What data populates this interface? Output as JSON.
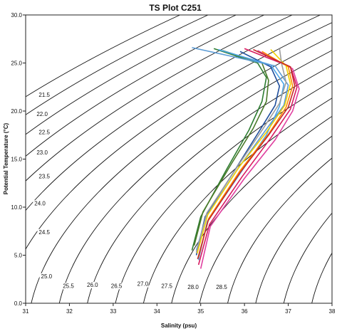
{
  "chart_data": {
    "type": "line",
    "title": "TS Plot C251",
    "xlabel": "Salinity (psu)",
    "ylabel": "Potential Temperature (°C)",
    "xlim": [
      31,
      38
    ],
    "ylim": [
      0,
      30
    ],
    "x_ticks": [
      "31",
      "32",
      "33",
      "34",
      "35",
      "36",
      "37",
      "38"
    ],
    "y_ticks": [
      "0.0",
      "5.0",
      "10.0",
      "15.0",
      "20.0",
      "25.0",
      "30.0"
    ],
    "grid": false,
    "legend": "none",
    "isopycnals": {
      "labels": [
        "21.5",
        "22.0",
        "22.5",
        "23.0",
        "23.5",
        "24.0",
        "24.5",
        "25.0",
        "25.5",
        "26.0",
        "26.5",
        "27.0",
        "27.5",
        "28.0",
        "28.5"
      ],
      "label_points": [
        {
          "label": "21.5",
          "x": 31.3,
          "y": 21.5
        },
        {
          "label": "22.0",
          "x": 31.25,
          "y": 19.5
        },
        {
          "label": "22.5",
          "x": 31.3,
          "y": 17.6
        },
        {
          "label": "23.0",
          "x": 31.25,
          "y": 15.5
        },
        {
          "label": "23.5",
          "x": 31.3,
          "y": 13.0
        },
        {
          "label": "24.0",
          "x": 31.2,
          "y": 10.2
        },
        {
          "label": "24.5",
          "x": 31.3,
          "y": 7.2
        },
        {
          "label": "25.0",
          "x": 31.35,
          "y": 2.6
        },
        {
          "label": "25.5",
          "x": 31.85,
          "y": 1.6
        },
        {
          "label": "26.0",
          "x": 32.4,
          "y": 1.7
        },
        {
          "label": "26.5",
          "x": 32.95,
          "y": 1.6
        },
        {
          "label": "27.0",
          "x": 33.55,
          "y": 1.8
        },
        {
          "label": "27.5",
          "x": 34.1,
          "y": 1.6
        },
        {
          "label": "28.0",
          "x": 34.7,
          "y": 1.5
        },
        {
          "label": "28.5",
          "x": 35.35,
          "y": 1.5
        }
      ]
    },
    "series": [
      {
        "color": "#2e7d32",
        "x": [
          34.8,
          35.0,
          35.6,
          36.1,
          36.4,
          36.5,
          36.3,
          35.3
        ],
        "y": [
          5.5,
          9.0,
          14.0,
          18.0,
          21.0,
          23.5,
          25.0,
          26.5
        ]
      },
      {
        "color": "#4a7a2a",
        "x": [
          34.85,
          35.05,
          35.7,
          36.2,
          36.5,
          36.55,
          36.4,
          35.5
        ],
        "y": [
          6.0,
          9.5,
          14.5,
          18.2,
          21.0,
          23.2,
          25.0,
          26.3
        ]
      },
      {
        "color": "#1f4e9c",
        "x": [
          34.9,
          35.1,
          35.8,
          36.35,
          36.7,
          36.8,
          36.6,
          35.9
        ],
        "y": [
          5.0,
          9.0,
          14.0,
          18.0,
          20.6,
          22.6,
          24.6,
          26.2
        ]
      },
      {
        "color": "#4da6e8",
        "x": [
          34.95,
          35.15,
          35.9,
          36.5,
          36.8,
          36.9,
          36.6,
          35.4
        ],
        "y": [
          4.5,
          8.5,
          13.5,
          17.5,
          20.5,
          22.8,
          24.8,
          26.4
        ]
      },
      {
        "color": "#5b9bd5",
        "x": [
          34.9,
          35.12,
          35.85,
          36.45,
          36.9,
          37.0,
          36.7,
          34.8
        ],
        "y": [
          5.5,
          9.0,
          14.0,
          17.8,
          20.6,
          22.7,
          24.7,
          26.6
        ]
      },
      {
        "color": "#d81b60",
        "x": [
          34.95,
          35.2,
          35.95,
          36.6,
          37.05,
          37.2,
          37.05,
          36.0
        ],
        "y": [
          4.0,
          8.2,
          13.2,
          17.2,
          20.2,
          22.5,
          24.6,
          26.5
        ]
      },
      {
        "color": "#e040a0",
        "x": [
          35.0,
          35.22,
          36.0,
          36.7,
          37.1,
          37.25,
          37.1,
          36.3
        ],
        "y": [
          3.6,
          8.0,
          13.0,
          17.0,
          20.0,
          22.3,
          24.4,
          26.3
        ]
      },
      {
        "color": "#ff8c00",
        "x": [
          34.95,
          35.18,
          35.9,
          36.55,
          36.95,
          37.1,
          37.0,
          36.4
        ],
        "y": [
          4.8,
          8.8,
          13.8,
          17.6,
          20.4,
          22.6,
          24.6,
          26.2
        ]
      },
      {
        "color": "#f2d100",
        "x": [
          34.92,
          35.16,
          35.88,
          36.5,
          36.92,
          37.05,
          36.95,
          36.6
        ],
        "y": [
          5.2,
          9.2,
          14.2,
          17.8,
          20.6,
          22.8,
          24.7,
          26.4
        ]
      },
      {
        "color": "#9e9e9e",
        "x": [
          34.9,
          35.14,
          35.85,
          36.4,
          36.8,
          36.95,
          36.85,
          36.8
        ],
        "y": [
          5.3,
          9.4,
          14.3,
          18.0,
          20.8,
          23.0,
          24.9,
          26.5
        ]
      },
      {
        "color": "#c62828",
        "x": [
          34.93,
          35.17,
          35.9,
          36.55,
          37.0,
          37.15,
          37.05,
          36.2
        ],
        "y": [
          4.6,
          8.6,
          13.6,
          17.5,
          20.4,
          22.6,
          24.6,
          26.4
        ]
      }
    ]
  }
}
